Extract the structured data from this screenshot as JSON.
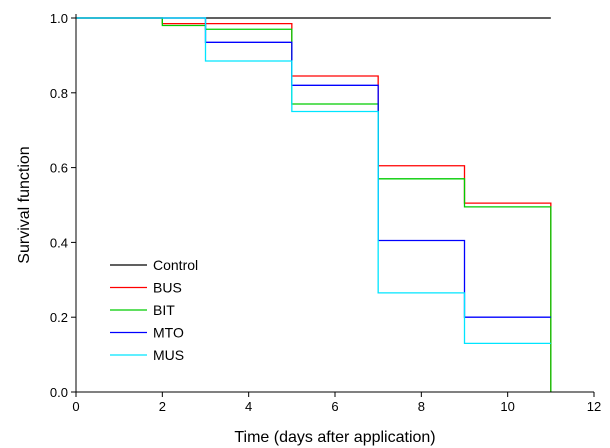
{
  "chart_data": {
    "type": "line",
    "step": true,
    "xlabel": "Time (days after application)",
    "ylabel": "Survival function",
    "xlim": [
      0,
      12
    ],
    "ylim": [
      0,
      1.0
    ],
    "xticks": [
      "0",
      "2",
      "4",
      "6",
      "8",
      "10",
      "12"
    ],
    "yticks": [
      "0.0",
      "0.2",
      "0.4",
      "0.6",
      "0.8",
      "1.0"
    ],
    "grid": false,
    "legend_position": "lower-left",
    "series": [
      {
        "name": "Control",
        "color": "#000000",
        "x": [
          0,
          11
        ],
        "y": [
          1.0,
          1.0
        ],
        "end_at": 11
      },
      {
        "name": "BUS",
        "color": "#ff0000",
        "x": [
          0,
          2,
          5,
          7,
          9,
          11
        ],
        "y": [
          1.0,
          0.985,
          0.845,
          0.605,
          0.505,
          0.0
        ],
        "end_at": 11
      },
      {
        "name": "BIT",
        "color": "#00cc00",
        "x": [
          0,
          2,
          3,
          5,
          7,
          9,
          11
        ],
        "y": [
          1.0,
          0.98,
          0.97,
          0.77,
          0.57,
          0.495,
          0.0
        ],
        "end_at": 11
      },
      {
        "name": "MTO",
        "color": "#0000ff",
        "x": [
          0,
          3,
          5,
          7,
          9
        ],
        "y": [
          1.0,
          0.935,
          0.82,
          0.405,
          0.2
        ],
        "end_at": 11
      },
      {
        "name": "MUS",
        "color": "#00e5ff",
        "x": [
          0,
          3,
          5,
          7,
          9
        ],
        "y": [
          1.0,
          0.885,
          0.75,
          0.265,
          0.13
        ],
        "end_at": 11
      }
    ]
  }
}
